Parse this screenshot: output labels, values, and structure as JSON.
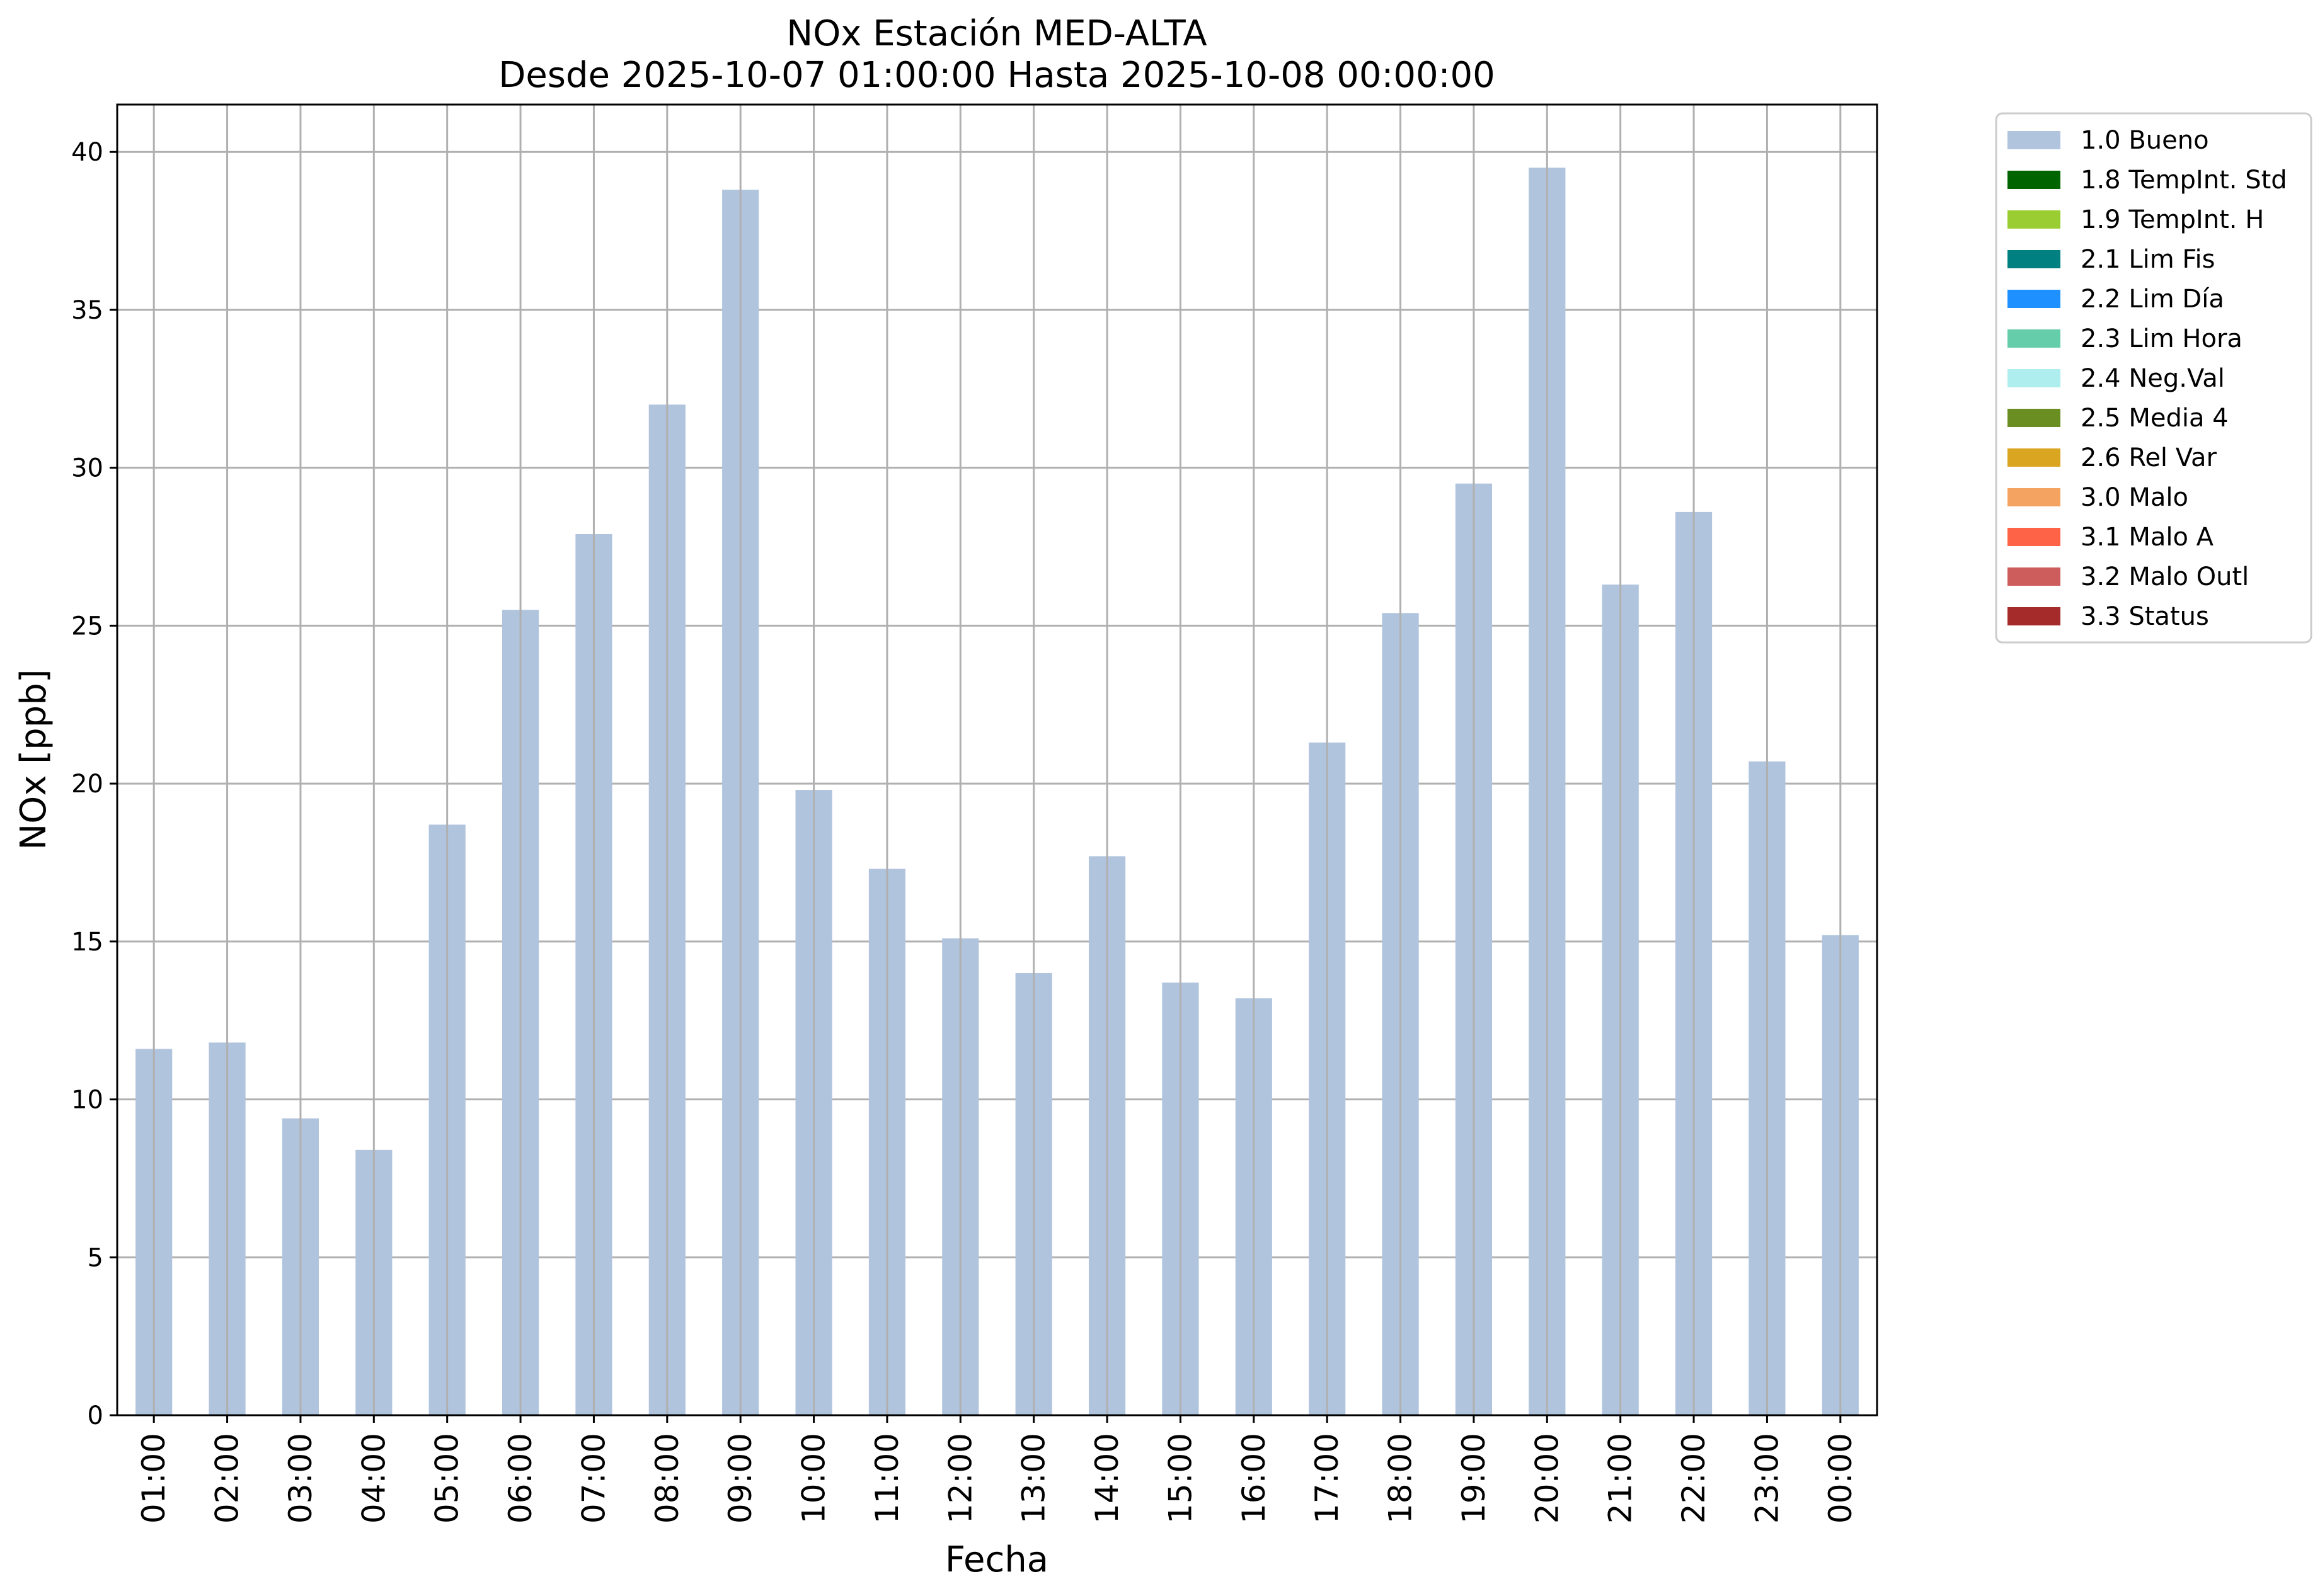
{
  "chart_data": {
    "type": "bar",
    "title": "NOx Estación MED-ALTA",
    "subtitle": "Desde 2025-10-07 01:00:00 Hasta 2025-10-08 00:00:00",
    "xlabel": "Fecha",
    "ylabel": "NOx [ppb]",
    "ylim": [
      0,
      41.5
    ],
    "yticks": [
      0,
      5,
      10,
      15,
      20,
      25,
      30,
      35,
      40
    ],
    "grid": true,
    "legend_position": "outside-top-right",
    "categories": [
      "01:00",
      "02:00",
      "03:00",
      "04:00",
      "05:00",
      "06:00",
      "07:00",
      "08:00",
      "09:00",
      "10:00",
      "11:00",
      "12:00",
      "13:00",
      "14:00",
      "15:00",
      "16:00",
      "17:00",
      "18:00",
      "19:00",
      "20:00",
      "21:00",
      "22:00",
      "23:00",
      "00:00"
    ],
    "series": [
      {
        "name": "1.0 Bueno",
        "color": "#b0c4de",
        "values": [
          11.6,
          11.8,
          9.4,
          8.4,
          18.7,
          25.5,
          27.9,
          32.0,
          38.8,
          19.8,
          17.3,
          15.1,
          14.0,
          17.7,
          13.7,
          13.2,
          21.3,
          25.4,
          29.5,
          39.5,
          26.3,
          28.6,
          20.7,
          15.2
        ]
      }
    ],
    "legend": [
      {
        "label": "1.0 Bueno",
        "color": "#b0c4de"
      },
      {
        "label": "1.8 TempInt. Std",
        "color": "#006400"
      },
      {
        "label": "1.9 TempInt. H",
        "color": "#9acd32"
      },
      {
        "label": "2.1 Lim Fis",
        "color": "#008080"
      },
      {
        "label": "2.2 Lim Día",
        "color": "#1e90ff"
      },
      {
        "label": "2.3 Lim Hora",
        "color": "#66cdaa"
      },
      {
        "label": "2.4 Neg.Val",
        "color": "#afeeee"
      },
      {
        "label": "2.5 Media 4",
        "color": "#6b8e23"
      },
      {
        "label": "2.6 Rel Var",
        "color": "#daa520"
      },
      {
        "label": "3.0 Malo",
        "color": "#f4a460"
      },
      {
        "label": "3.1 Malo A",
        "color": "#ff6347"
      },
      {
        "label": "3.2 Malo Outl",
        "color": "#cd5c5c"
      },
      {
        "label": "3.3 Status",
        "color": "#a52a2a"
      }
    ]
  }
}
